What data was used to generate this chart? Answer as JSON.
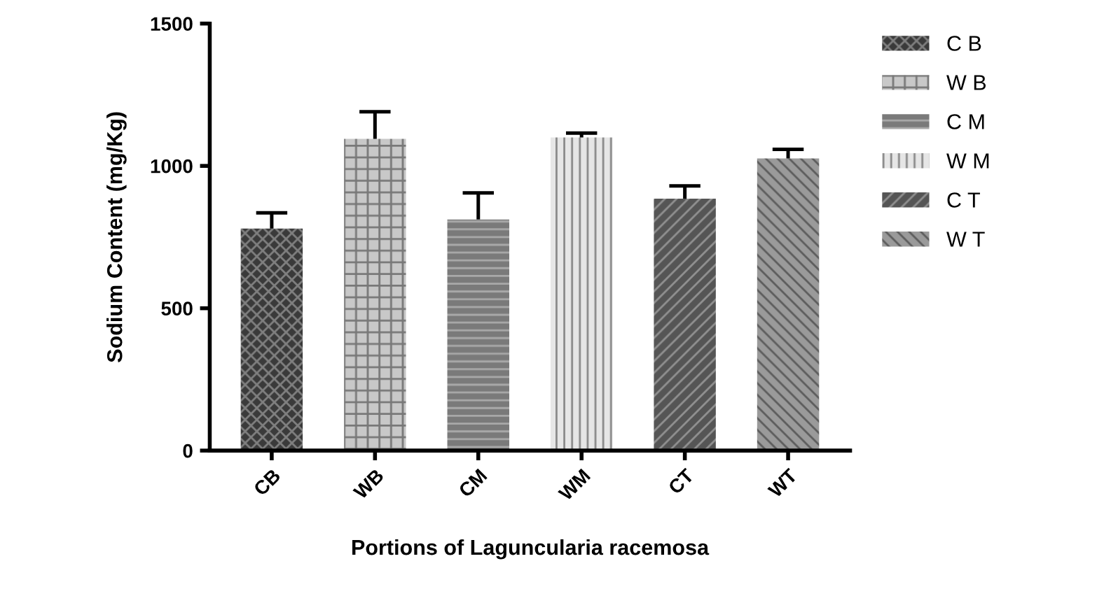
{
  "chart_data": {
    "type": "bar",
    "xlabel": "Portions of Laguncularia racemosa",
    "ylabel": "Sodium Content (mg/Kg)",
    "categories": [
      "CB",
      "WB",
      "CM",
      "WM",
      "CT",
      "WT"
    ],
    "series": [
      {
        "name": "C B",
        "color": "#3a3a3a",
        "values": [
          780,
          null,
          null,
          null,
          null,
          null
        ],
        "errors": [
          [
            780,
            835
          ],
          null,
          null,
          null,
          null,
          null
        ]
      },
      {
        "name": "W B",
        "color": "#c8c8c8",
        "values": [
          null,
          1095,
          null,
          null,
          null,
          null
        ],
        "errors": [
          null,
          [
            1095,
            1190
          ],
          null,
          null,
          null,
          null
        ]
      },
      {
        "name": "C M",
        "color": "#7a7a7a",
        "values": [
          null,
          null,
          812,
          null,
          null,
          null
        ],
        "errors": [
          null,
          null,
          [
            812,
            905
          ],
          null,
          null,
          null
        ]
      },
      {
        "name": "W M",
        "color": "#e6e6e6",
        "values": [
          null,
          null,
          null,
          1100,
          null,
          null
        ],
        "errors": [
          null,
          null,
          null,
          [
            1100,
            1115
          ],
          null,
          null
        ]
      },
      {
        "name": "C T",
        "color": "#555555",
        "values": [
          null,
          null,
          null,
          null,
          885,
          null
        ],
        "errors": [
          null,
          null,
          null,
          null,
          [
            885,
            930
          ],
          null
        ]
      },
      {
        "name": "W T",
        "color": "#9a9a9a",
        "values": [
          null,
          null,
          null,
          null,
          null,
          1026
        ],
        "errors": [
          null,
          null,
          null,
          null,
          null,
          [
            1026,
            1058
          ]
        ]
      }
    ],
    "ylim": [
      0,
      1500
    ],
    "yticks": [
      0,
      500,
      1000,
      1500
    ],
    "grid": false,
    "legend": "right"
  }
}
